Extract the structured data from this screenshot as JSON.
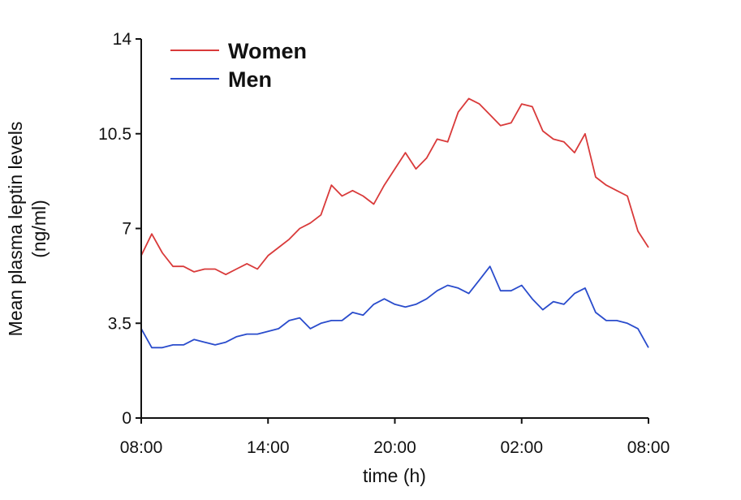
{
  "chart_data": {
    "type": "line",
    "xlabel": "time (h)",
    "ylabel": [
      "Mean plasma leptin levels",
      "(ng/ml)"
    ],
    "x_ticks": [
      "08:00",
      "14:00",
      "20:00",
      "02:00",
      "08:00"
    ],
    "x_tick_hours": [
      0,
      6,
      12,
      18,
      24
    ],
    "xlim": [
      0,
      24
    ],
    "y_ticks": [
      "0",
      "3.5",
      "7",
      "10.5",
      "14"
    ],
    "y_tick_values": [
      0,
      3.5,
      7,
      10.5,
      14
    ],
    "ylim": [
      0,
      14
    ],
    "grid": false,
    "legend_position": "top-left",
    "x_hours": [
      0,
      0.5,
      1,
      1.5,
      2,
      2.5,
      3,
      3.5,
      4,
      4.5,
      5,
      5.5,
      6,
      6.5,
      7,
      7.5,
      8,
      8.5,
      9,
      9.5,
      10,
      10.5,
      11,
      11.5,
      12,
      12.5,
      13,
      13.5,
      14,
      14.5,
      15,
      15.5,
      16,
      16.5,
      17,
      17.5,
      18,
      18.5,
      19,
      19.5,
      20,
      20.5,
      21,
      21.5,
      22,
      22.5,
      23,
      23.5,
      24
    ],
    "series": [
      {
        "name": "Women",
        "color": "#d93a3a",
        "values": [
          6.0,
          6.8,
          6.1,
          5.6,
          5.6,
          5.4,
          5.5,
          5.5,
          5.3,
          5.5,
          5.7,
          5.5,
          6.0,
          6.3,
          6.6,
          7.0,
          7.2,
          7.5,
          8.6,
          8.2,
          8.4,
          8.2,
          7.9,
          8.6,
          9.2,
          9.8,
          9.2,
          9.6,
          10.3,
          10.2,
          11.3,
          11.8,
          11.6,
          11.2,
          10.8,
          10.9,
          11.6,
          11.5,
          10.6,
          10.3,
          10.2,
          9.8,
          10.5,
          8.9,
          8.6,
          8.4,
          8.2,
          6.9,
          6.3
        ]
      },
      {
        "name": "Men",
        "color": "#2a4ccc",
        "values": [
          3.3,
          2.6,
          2.6,
          2.7,
          2.7,
          2.9,
          2.8,
          2.7,
          2.8,
          3.0,
          3.1,
          3.1,
          3.2,
          3.3,
          3.6,
          3.7,
          3.3,
          3.5,
          3.6,
          3.6,
          3.9,
          3.8,
          4.2,
          4.4,
          4.2,
          4.1,
          4.2,
          4.4,
          4.7,
          4.9,
          4.8,
          4.6,
          5.1,
          5.6,
          4.7,
          4.7,
          4.9,
          4.4,
          4.0,
          4.3,
          4.2,
          4.6,
          4.8,
          3.9,
          3.6,
          3.6,
          3.5,
          3.3,
          2.6
        ]
      }
    ]
  }
}
